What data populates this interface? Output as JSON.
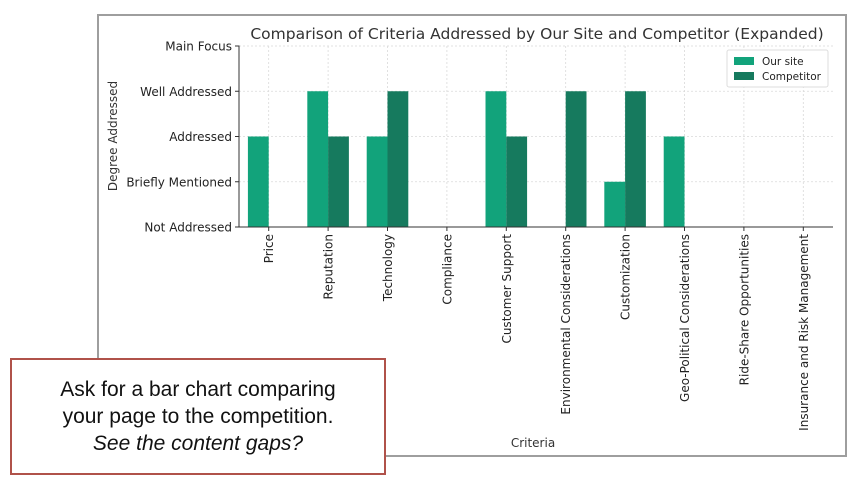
{
  "chart_data": {
    "type": "bar",
    "title": "Comparison of Criteria Addressed by Our Site and Competitor (Expanded)",
    "xlabel": "Criteria",
    "ylabel": "Degree Addressed",
    "categories": [
      "Price",
      "Reputation",
      "Technology",
      "Compliance",
      "Customer Support",
      "Environmental Considerations",
      "Customization",
      "Geo-Political Considerations",
      "Ride-Share Opportunities",
      "Insurance and Risk Management"
    ],
    "y_tick_labels": [
      "Not Addressed",
      "Briefly Mentioned",
      "Addressed",
      "Well Addressed",
      "Main Focus"
    ],
    "ylim": [
      0,
      4
    ],
    "grid": true,
    "legend_position": "top-right",
    "series": [
      {
        "name": "Our site",
        "color": "#12a37b",
        "values": [
          2,
          3,
          2,
          0,
          3,
          0,
          1,
          2,
          0,
          0
        ]
      },
      {
        "name": "Competitor",
        "color": "#167a5e",
        "values": [
          0,
          2,
          3,
          0,
          2,
          3,
          3,
          0,
          0,
          0
        ]
      }
    ]
  },
  "callout": {
    "line1": "Ask for a bar chart comparing",
    "line2": "your page to the competition.",
    "line3": "See the content gaps?"
  }
}
